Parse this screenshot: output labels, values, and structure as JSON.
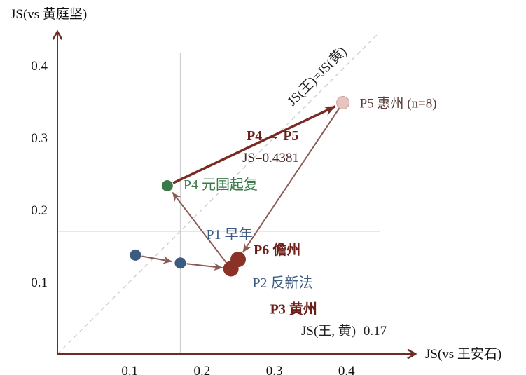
{
  "chart_data": {
    "type": "scatter",
    "xlabel": "JS(vs 王安石)",
    "ylabel": "JS(vs 黄庭坚)",
    "xlim": [
      0,
      0.45
    ],
    "ylim": [
      0,
      0.45
    ],
    "xticks": [
      0.1,
      0.2,
      0.3,
      0.4
    ],
    "yticks": [
      0.1,
      0.2,
      0.3,
      0.4
    ],
    "reference_lines": {
      "js_wang_huang": 0.17,
      "js_wang_huang_label": "JS(王, 黄)=0.17",
      "diagonal_label": "JS(王)=JS(黄)"
    },
    "points": [
      {
        "id": "P1",
        "label": "P1 早年",
        "x": 0.108,
        "y": 0.137,
        "color": "#3d5a80"
      },
      {
        "id": "P2",
        "label": "P2 反新法",
        "x": 0.17,
        "y": 0.126,
        "color": "#3d5a80"
      },
      {
        "id": "P3",
        "label": "P3 黄州",
        "x": 0.24,
        "y": 0.118,
        "color": "#8b3227"
      },
      {
        "id": "P4",
        "label": "P4 元囯起复",
        "x": 0.152,
        "y": 0.233,
        "color": "#3a7a4a"
      },
      {
        "id": "P5",
        "label": "P5 惠州 (n=8)",
        "x": 0.395,
        "y": 0.348,
        "color": "#e8c4c0"
      },
      {
        "id": "P6",
        "label": "P6 儋州",
        "x": 0.25,
        "y": 0.131,
        "color": "#8b3227"
      }
    ],
    "trajectory": [
      "P1",
      "P2",
      "P3",
      "P4",
      "P5",
      "P6"
    ],
    "highlight": {
      "from": "P4",
      "to": "P5",
      "label": "P4 → P5",
      "value_label": "JS=0.4381"
    }
  }
}
